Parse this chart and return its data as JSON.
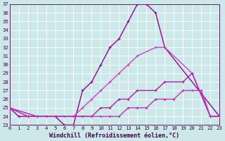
{
  "xlabel": "Windchill (Refroidissement éolien,°C)",
  "bg_color": "#cce8e8",
  "grid_color": "#ffffff",
  "xmin": 0,
  "xmax": 23,
  "ymin": 23,
  "ymax": 37,
  "yticks": [
    23,
    24,
    25,
    26,
    27,
    28,
    29,
    30,
    31,
    32,
    33,
    34,
    35,
    36,
    37
  ],
  "xticks": [
    0,
    1,
    2,
    3,
    4,
    5,
    6,
    7,
    8,
    9,
    10,
    11,
    12,
    13,
    14,
    15,
    16,
    17,
    18,
    19,
    20,
    21,
    22,
    23
  ],
  "series": [
    {
      "x": [
        0,
        1,
        2,
        3,
        4,
        5,
        6,
        7,
        8,
        9,
        10,
        11,
        12,
        13,
        14,
        15,
        16,
        17,
        23
      ],
      "y": [
        25,
        24,
        24,
        24,
        24,
        24,
        23,
        23,
        27,
        28,
        30,
        32,
        33,
        35,
        37,
        37,
        36,
        32,
        24
      ],
      "color": "#990099",
      "lw": 1.0
    },
    {
      "x": [
        0,
        2,
        3,
        4,
        5,
        6,
        7,
        8,
        9,
        10,
        11,
        12,
        13,
        14,
        16,
        17,
        20,
        22,
        23
      ],
      "y": [
        25,
        24,
        24,
        24,
        24,
        24,
        24,
        25,
        26,
        27,
        28,
        29,
        30,
        31,
        32,
        32,
        29,
        24,
        24
      ],
      "color": "#cc44cc",
      "lw": 1.0
    },
    {
      "x": [
        0,
        3,
        5,
        8,
        9,
        10,
        11,
        12,
        13,
        14,
        16,
        17,
        19,
        20,
        22,
        23
      ],
      "y": [
        25,
        24,
        24,
        24,
        24,
        25,
        25,
        26,
        26,
        27,
        27,
        28,
        28,
        29,
        24,
        24
      ],
      "color": "#aa22aa",
      "lw": 1.0
    },
    {
      "x": [
        0,
        2,
        3,
        5,
        8,
        9,
        10,
        11,
        12,
        13,
        14,
        15,
        16,
        17,
        18,
        19,
        20,
        21,
        22,
        23
      ],
      "y": [
        25,
        24,
        24,
        24,
        24,
        24,
        24,
        24,
        24,
        25,
        25,
        25,
        26,
        26,
        26,
        27,
        27,
        27,
        24,
        24
      ],
      "color": "#bb33bb",
      "lw": 1.0
    }
  ],
  "tick_fontsize": 5.2,
  "label_fontsize": 6.0
}
